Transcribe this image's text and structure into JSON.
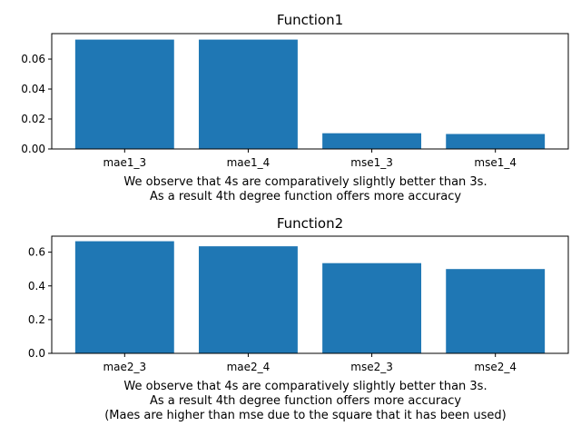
{
  "chart_data": [
    {
      "type": "bar",
      "title": "Function1",
      "categories": [
        "mae1_3",
        "mae1_4",
        "mse1_3",
        "mse1_4"
      ],
      "values": [
        0.073,
        0.073,
        0.0105,
        0.01
      ],
      "ylim": [
        0,
        0.077
      ],
      "yticks": [
        0.0,
        0.02,
        0.04,
        0.06
      ],
      "ytick_labels": [
        "0.00",
        "0.02",
        "0.04",
        "0.06"
      ],
      "color": "#1f77b4",
      "grid": false,
      "caption": [
        "We observe that 4s are comparatively slightly better than 3s.",
        "As a result 4th degree function offers more accuracy"
      ]
    },
    {
      "type": "bar",
      "title": "Function2",
      "categories": [
        "mae2_3",
        "mae2_4",
        "mse2_3",
        "mse2_4"
      ],
      "values": [
        0.665,
        0.635,
        0.535,
        0.5
      ],
      "ylim": [
        0,
        0.695
      ],
      "yticks": [
        0.0,
        0.2,
        0.4,
        0.6
      ],
      "ytick_labels": [
        "0.0",
        "0.2",
        "0.4",
        "0.6"
      ],
      "color": "#1f77b4",
      "grid": false,
      "caption": [
        "We observe that 4s are comparatively slightly better than 3s.",
        "As a result 4th degree function offers more accuracy",
        "(Maes are higher than mse due to the square that it has been used)"
      ]
    }
  ]
}
